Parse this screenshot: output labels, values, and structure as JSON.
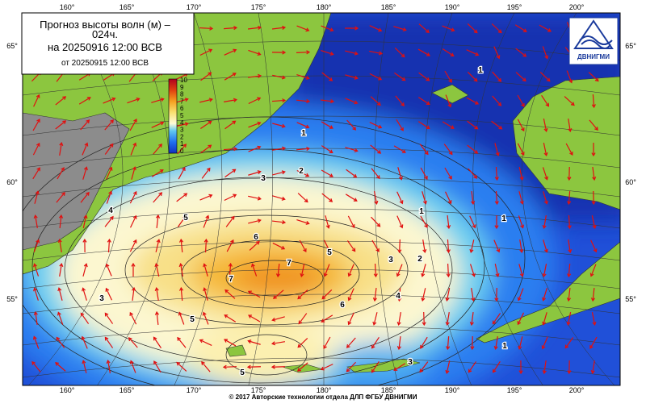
{
  "header": {
    "title_line1": "Прогноз высоты волн (м) –",
    "title_line2": "024ч.",
    "valid": "на 20250916 12:00 ВСВ",
    "issued": "от 20250915 12:00 ВСВ"
  },
  "colorbar": {
    "ticks": [
      "10",
      "9",
      "8",
      "7",
      "6",
      "5",
      "4",
      "3",
      "2",
      "1",
      "0"
    ]
  },
  "longitudes": [
    "160°",
    "165°",
    "170°",
    "175°",
    "180°",
    "185°",
    "190°",
    "195°",
    "200°"
  ],
  "latitudes": [
    "65°",
    "60°",
    "55°"
  ],
  "contour_labels": [
    "1",
    "1",
    "1",
    "1",
    "1",
    "2",
    "2",
    "3",
    "3",
    "3",
    "4",
    "4",
    "5",
    "5",
    "5",
    "6",
    "6",
    "7",
    "7",
    "5",
    "3"
  ],
  "logo": "ДВНИГМИ",
  "footer": "© 2017 Авторские технологии отдела ДЛП ФГБУ ДВНИГМИ"
}
